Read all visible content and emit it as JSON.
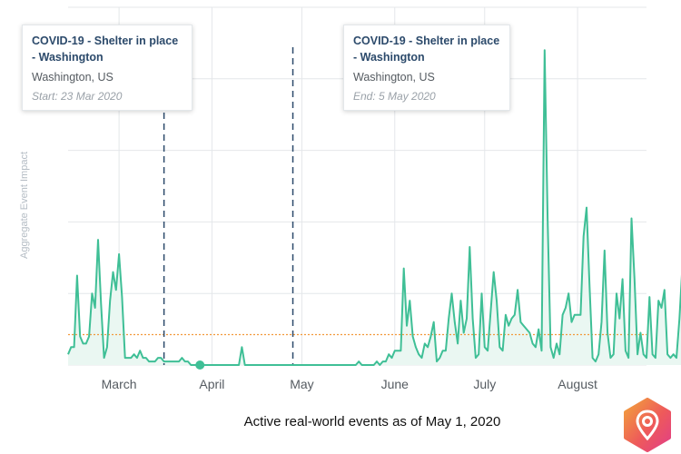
{
  "caption": "Active real-world events as of May 1, 2020",
  "colors": {
    "line": "#3fbf96",
    "fill": "#eaf7f2",
    "baseline": "#f29a3c",
    "marker": "#2c4a6b",
    "grid": "#e4e7ea"
  },
  "tooltips": {
    "start": {
      "title": "COVID-19 - Shelter in place - Washington",
      "location": "Washington, US",
      "date": "Start: 23 Mar 2020"
    },
    "end": {
      "title": "COVID-19 - Shelter in place - Washington",
      "location": "Washington, US",
      "date": "End: 5 May 2020"
    }
  },
  "logo": {
    "icon": "location-pin-icon"
  },
  "chart_data": {
    "type": "area",
    "ylabel": "Aggregate Event Impact",
    "xlabel": "",
    "x_start": "2020-02-20",
    "x_end": "2020-08-31",
    "ylim": [
      0,
      100
    ],
    "yticks": [
      0,
      20,
      40,
      60,
      80,
      100
    ],
    "grid": true,
    "x_tick_labels": [
      "March",
      "April",
      "May",
      "June",
      "July",
      "August"
    ],
    "x_tick_dates": [
      "2020-03-08",
      "2020-04-08",
      "2020-05-08",
      "2020-06-08",
      "2020-07-08",
      "2020-08-08"
    ],
    "baseline_value": 8.5,
    "event_markers": [
      {
        "date": "2020-03-23",
        "label": "Start: 23 Mar 2020"
      },
      {
        "date": "2020-05-05",
        "label": "End: 5 May 2020"
      }
    ],
    "highlight_point": {
      "date": "2020-04-04",
      "value": 0
    },
    "series": [
      {
        "values": [
          3,
          5,
          5,
          25,
          8,
          6,
          6,
          8,
          20,
          16,
          35,
          17,
          2,
          5,
          18,
          26,
          21,
          31,
          19,
          2,
          2,
          2,
          3,
          2,
          4,
          2,
          2,
          1,
          1,
          1,
          2,
          2,
          1,
          1,
          1,
          1,
          1,
          1,
          2,
          1,
          1,
          0,
          0,
          0,
          0,
          0,
          0,
          0,
          0,
          0,
          0,
          0,
          0,
          0,
          0,
          0,
          0,
          0,
          5,
          0,
          0,
          0,
          0,
          0,
          0,
          0,
          0,
          0,
          0,
          0,
          0,
          0,
          0,
          0,
          0,
          0,
          0,
          0,
          0,
          0,
          0,
          0,
          0,
          0,
          0,
          0,
          0,
          0,
          0,
          0,
          0,
          0,
          0,
          0,
          0,
          0,
          0,
          1,
          0,
          0,
          0,
          0,
          0,
          1,
          0,
          1,
          1,
          3,
          2,
          4,
          4,
          4,
          27,
          11,
          18,
          8,
          5,
          3,
          2,
          6,
          5,
          8,
          12,
          1,
          2,
          4,
          4,
          13,
          20,
          12,
          6,
          18,
          9,
          13,
          33,
          13,
          2,
          3,
          20,
          5,
          4,
          15,
          26,
          18,
          5,
          4,
          14,
          11,
          13,
          14,
          21,
          12,
          11,
          10,
          9,
          6,
          5,
          10,
          4,
          88,
          41,
          5,
          2,
          6,
          3,
          14,
          16,
          20,
          12,
          14,
          14,
          14,
          36,
          44,
          22,
          2,
          1,
          3,
          12,
          32,
          9,
          2,
          3,
          20,
          13,
          24,
          4,
          2,
          41,
          24,
          3,
          9,
          3,
          2,
          19,
          3,
          2,
          18,
          16,
          21,
          3,
          2,
          3,
          2,
          13,
          28,
          16,
          9,
          13,
          8
        ]
      }
    ]
  }
}
